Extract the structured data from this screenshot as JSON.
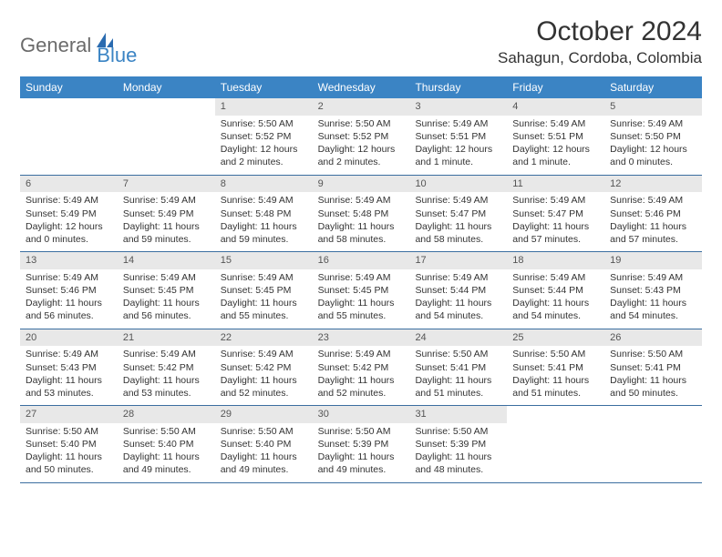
{
  "brand": {
    "part1": "General",
    "part2": "Blue"
  },
  "title": "October 2024",
  "location": "Sahagun, Cordoba, Colombia",
  "colors": {
    "header_bg": "#3b84c4",
    "header_text": "#ffffff",
    "daynum_bg": "#e8e8e8",
    "row_border": "#3b6ea0",
    "logo_gray": "#6b6b6b",
    "logo_blue": "#3b84c4"
  },
  "weekdays": [
    "Sunday",
    "Monday",
    "Tuesday",
    "Wednesday",
    "Thursday",
    "Friday",
    "Saturday"
  ],
  "weeks": [
    [
      {
        "n": "",
        "sr": "",
        "ss": "",
        "dl": ""
      },
      {
        "n": "",
        "sr": "",
        "ss": "",
        "dl": ""
      },
      {
        "n": "1",
        "sr": "Sunrise: 5:50 AM",
        "ss": "Sunset: 5:52 PM",
        "dl": "Daylight: 12 hours and 2 minutes."
      },
      {
        "n": "2",
        "sr": "Sunrise: 5:50 AM",
        "ss": "Sunset: 5:52 PM",
        "dl": "Daylight: 12 hours and 2 minutes."
      },
      {
        "n": "3",
        "sr": "Sunrise: 5:49 AM",
        "ss": "Sunset: 5:51 PM",
        "dl": "Daylight: 12 hours and 1 minute."
      },
      {
        "n": "4",
        "sr": "Sunrise: 5:49 AM",
        "ss": "Sunset: 5:51 PM",
        "dl": "Daylight: 12 hours and 1 minute."
      },
      {
        "n": "5",
        "sr": "Sunrise: 5:49 AM",
        "ss": "Sunset: 5:50 PM",
        "dl": "Daylight: 12 hours and 0 minutes."
      }
    ],
    [
      {
        "n": "6",
        "sr": "Sunrise: 5:49 AM",
        "ss": "Sunset: 5:49 PM",
        "dl": "Daylight: 12 hours and 0 minutes."
      },
      {
        "n": "7",
        "sr": "Sunrise: 5:49 AM",
        "ss": "Sunset: 5:49 PM",
        "dl": "Daylight: 11 hours and 59 minutes."
      },
      {
        "n": "8",
        "sr": "Sunrise: 5:49 AM",
        "ss": "Sunset: 5:48 PM",
        "dl": "Daylight: 11 hours and 59 minutes."
      },
      {
        "n": "9",
        "sr": "Sunrise: 5:49 AM",
        "ss": "Sunset: 5:48 PM",
        "dl": "Daylight: 11 hours and 58 minutes."
      },
      {
        "n": "10",
        "sr": "Sunrise: 5:49 AM",
        "ss": "Sunset: 5:47 PM",
        "dl": "Daylight: 11 hours and 58 minutes."
      },
      {
        "n": "11",
        "sr": "Sunrise: 5:49 AM",
        "ss": "Sunset: 5:47 PM",
        "dl": "Daylight: 11 hours and 57 minutes."
      },
      {
        "n": "12",
        "sr": "Sunrise: 5:49 AM",
        "ss": "Sunset: 5:46 PM",
        "dl": "Daylight: 11 hours and 57 minutes."
      }
    ],
    [
      {
        "n": "13",
        "sr": "Sunrise: 5:49 AM",
        "ss": "Sunset: 5:46 PM",
        "dl": "Daylight: 11 hours and 56 minutes."
      },
      {
        "n": "14",
        "sr": "Sunrise: 5:49 AM",
        "ss": "Sunset: 5:45 PM",
        "dl": "Daylight: 11 hours and 56 minutes."
      },
      {
        "n": "15",
        "sr": "Sunrise: 5:49 AM",
        "ss": "Sunset: 5:45 PM",
        "dl": "Daylight: 11 hours and 55 minutes."
      },
      {
        "n": "16",
        "sr": "Sunrise: 5:49 AM",
        "ss": "Sunset: 5:45 PM",
        "dl": "Daylight: 11 hours and 55 minutes."
      },
      {
        "n": "17",
        "sr": "Sunrise: 5:49 AM",
        "ss": "Sunset: 5:44 PM",
        "dl": "Daylight: 11 hours and 54 minutes."
      },
      {
        "n": "18",
        "sr": "Sunrise: 5:49 AM",
        "ss": "Sunset: 5:44 PM",
        "dl": "Daylight: 11 hours and 54 minutes."
      },
      {
        "n": "19",
        "sr": "Sunrise: 5:49 AM",
        "ss": "Sunset: 5:43 PM",
        "dl": "Daylight: 11 hours and 54 minutes."
      }
    ],
    [
      {
        "n": "20",
        "sr": "Sunrise: 5:49 AM",
        "ss": "Sunset: 5:43 PM",
        "dl": "Daylight: 11 hours and 53 minutes."
      },
      {
        "n": "21",
        "sr": "Sunrise: 5:49 AM",
        "ss": "Sunset: 5:42 PM",
        "dl": "Daylight: 11 hours and 53 minutes."
      },
      {
        "n": "22",
        "sr": "Sunrise: 5:49 AM",
        "ss": "Sunset: 5:42 PM",
        "dl": "Daylight: 11 hours and 52 minutes."
      },
      {
        "n": "23",
        "sr": "Sunrise: 5:49 AM",
        "ss": "Sunset: 5:42 PM",
        "dl": "Daylight: 11 hours and 52 minutes."
      },
      {
        "n": "24",
        "sr": "Sunrise: 5:50 AM",
        "ss": "Sunset: 5:41 PM",
        "dl": "Daylight: 11 hours and 51 minutes."
      },
      {
        "n": "25",
        "sr": "Sunrise: 5:50 AM",
        "ss": "Sunset: 5:41 PM",
        "dl": "Daylight: 11 hours and 51 minutes."
      },
      {
        "n": "26",
        "sr": "Sunrise: 5:50 AM",
        "ss": "Sunset: 5:41 PM",
        "dl": "Daylight: 11 hours and 50 minutes."
      }
    ],
    [
      {
        "n": "27",
        "sr": "Sunrise: 5:50 AM",
        "ss": "Sunset: 5:40 PM",
        "dl": "Daylight: 11 hours and 50 minutes."
      },
      {
        "n": "28",
        "sr": "Sunrise: 5:50 AM",
        "ss": "Sunset: 5:40 PM",
        "dl": "Daylight: 11 hours and 49 minutes."
      },
      {
        "n": "29",
        "sr": "Sunrise: 5:50 AM",
        "ss": "Sunset: 5:40 PM",
        "dl": "Daylight: 11 hours and 49 minutes."
      },
      {
        "n": "30",
        "sr": "Sunrise: 5:50 AM",
        "ss": "Sunset: 5:39 PM",
        "dl": "Daylight: 11 hours and 49 minutes."
      },
      {
        "n": "31",
        "sr": "Sunrise: 5:50 AM",
        "ss": "Sunset: 5:39 PM",
        "dl": "Daylight: 11 hours and 48 minutes."
      },
      {
        "n": "",
        "sr": "",
        "ss": "",
        "dl": ""
      },
      {
        "n": "",
        "sr": "",
        "ss": "",
        "dl": ""
      }
    ]
  ]
}
